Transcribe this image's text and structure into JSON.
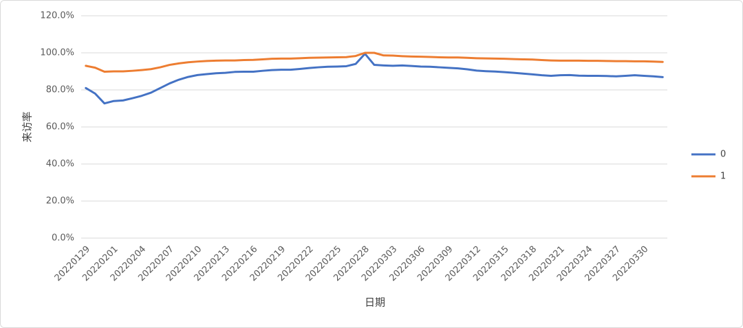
{
  "chart_data": {
    "type": "line",
    "x_label": "日期",
    "y_label": "来访率",
    "categories": [
      "20220129",
      null,
      null,
      "20220201",
      null,
      null,
      "20220204",
      null,
      null,
      "20220207",
      null,
      null,
      "20220210",
      null,
      null,
      "20220213",
      null,
      null,
      "20220216",
      null,
      null,
      "20220219",
      null,
      null,
      "20220222",
      null,
      null,
      "20220225",
      null,
      null,
      "20220228",
      null,
      null,
      "20220303",
      null,
      null,
      "20220306",
      null,
      null,
      "20220309",
      null,
      null,
      "20220312",
      null,
      null,
      "20220315",
      null,
      null,
      "20220318",
      null,
      null,
      "20220321",
      null,
      null,
      "20220324",
      null,
      null,
      "20220327",
      null,
      null,
      "20220330",
      null,
      null
    ],
    "series": [
      {
        "name": "0",
        "color": "#4472c4",
        "values": [
          81,
          78,
          72.7,
          74,
          74.3,
          75.5,
          76.8,
          78.5,
          81,
          83.5,
          85.5,
          87,
          88,
          88.5,
          89,
          89.2,
          89.7,
          89.8,
          89.8,
          90.3,
          90.7,
          90.9,
          90.9,
          91.3,
          91.8,
          92.2,
          92.5,
          92.6,
          92.8,
          94,
          99.5,
          93.5,
          93.2,
          93,
          93.2,
          92.9,
          92.6,
          92.5,
          92.2,
          91.9,
          91.6,
          91.1,
          90.4,
          90.1,
          89.9,
          89.6,
          89.2,
          88.8,
          88.4,
          87.9,
          87.6,
          87.9,
          88,
          87.7,
          87.6,
          87.6,
          87.5,
          87.3,
          87.6,
          87.9,
          87.6,
          87.3,
          86.9
        ]
      },
      {
        "name": "1",
        "color": "#ed7d31",
        "values": [
          93,
          92,
          89.8,
          90,
          90,
          90.3,
          90.7,
          91.2,
          92.2,
          93.5,
          94.3,
          94.9,
          95.3,
          95.6,
          95.8,
          95.9,
          95.9,
          96.1,
          96.2,
          96.5,
          96.8,
          96.9,
          96.9,
          97.1,
          97.3,
          97.4,
          97.5,
          97.6,
          97.7,
          98.3,
          100,
          100,
          98.6,
          98.5,
          98.2,
          98,
          97.9,
          97.8,
          97.6,
          97.5,
          97.5,
          97.3,
          97.1,
          97,
          96.9,
          96.8,
          96.6,
          96.5,
          96.4,
          96.1,
          95.9,
          95.8,
          95.8,
          95.8,
          95.7,
          95.7,
          95.6,
          95.5,
          95.5,
          95.4,
          95.4,
          95.3,
          95.1
        ]
      }
    ],
    "ylim": [
      0,
      120
    ],
    "yticks": [
      {
        "value": 0,
        "label": "0.0%"
      },
      {
        "value": 20,
        "label": "20.0%"
      },
      {
        "value": 40,
        "label": "40.0%"
      },
      {
        "value": 60,
        "label": "60.0%"
      },
      {
        "value": 80,
        "label": "80.0%"
      },
      {
        "value": 100,
        "label": "100.0%"
      },
      {
        "value": 120,
        "label": "120.0%"
      }
    ],
    "grid": true,
    "legend": "right"
  }
}
